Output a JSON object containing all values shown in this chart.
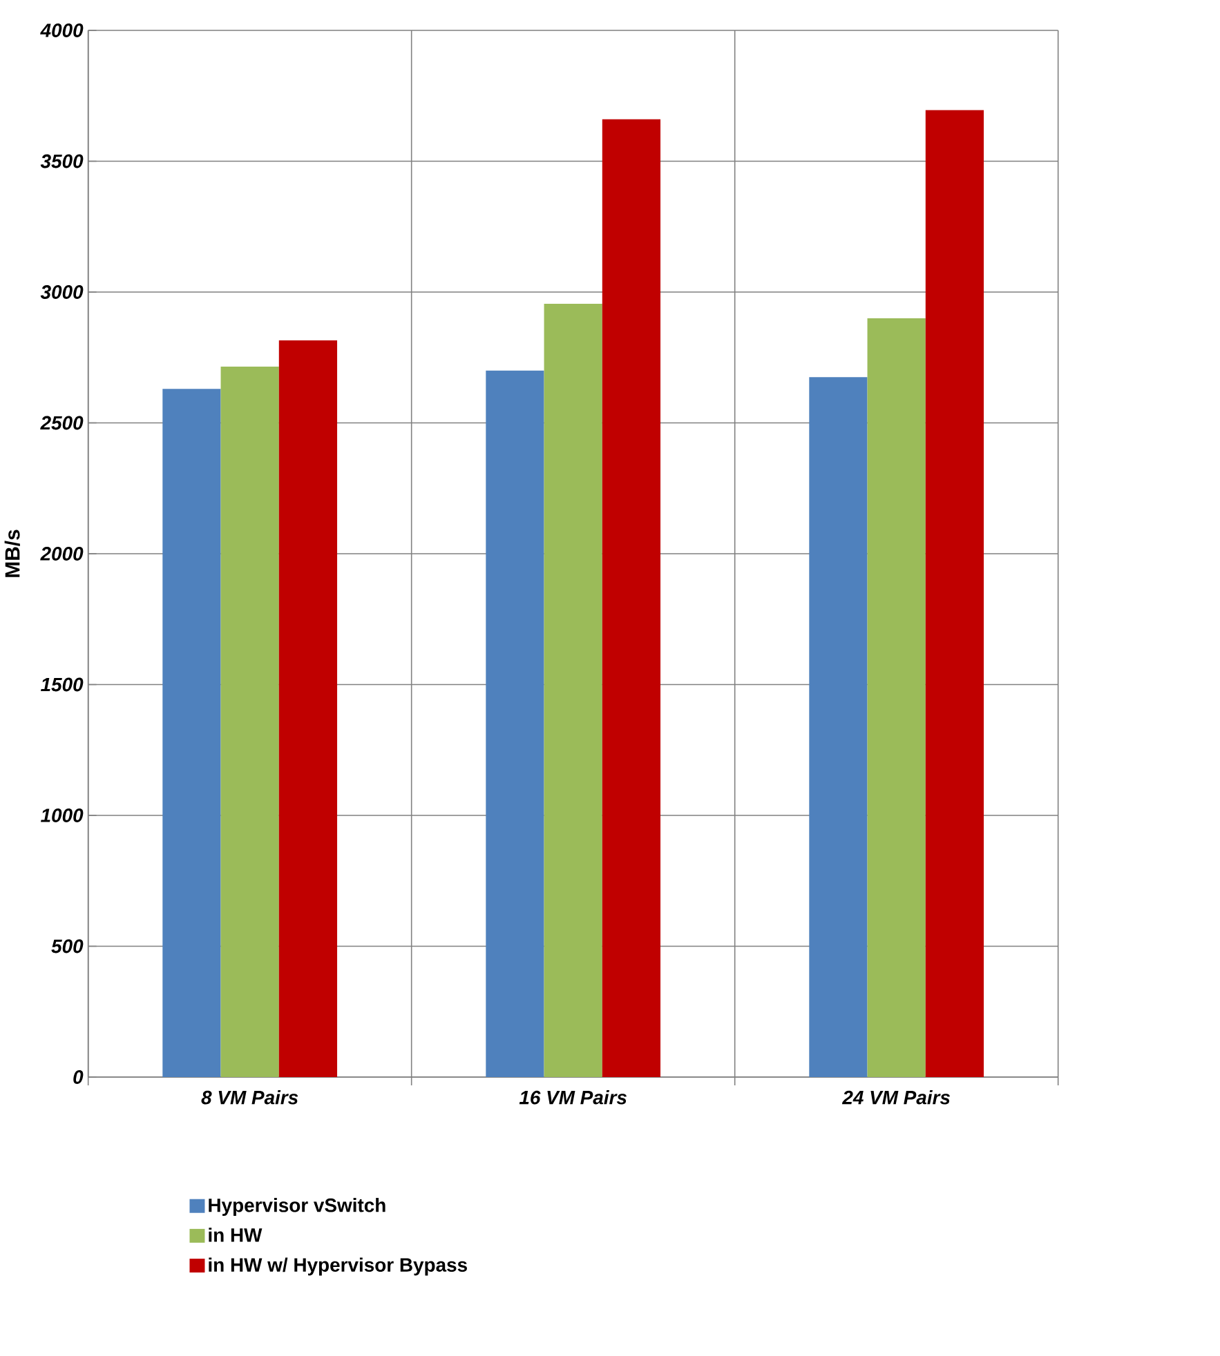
{
  "chart_data": {
    "type": "bar",
    "ylabel": "MB/s",
    "categories": [
      "8 VM Pairs",
      "16 VM Pairs",
      "24 VM Pairs"
    ],
    "series": [
      {
        "name": "Hypervisor vSwitch",
        "color": "#4f81bd",
        "values": [
          2630,
          2700,
          2675
        ]
      },
      {
        "name": "in HW",
        "color": "#9bbb59",
        "values": [
          2715,
          2955,
          2900
        ]
      },
      {
        "name": "in HW w/ Hypervisor Bypass",
        "color": "#c00000",
        "values": [
          2815,
          3660,
          3695
        ]
      }
    ],
    "ylim": [
      0,
      4000
    ],
    "yticks": [
      0,
      500,
      1000,
      1500,
      2000,
      2500,
      3000,
      3500,
      4000
    ],
    "grid": true,
    "legend": "bottom"
  }
}
